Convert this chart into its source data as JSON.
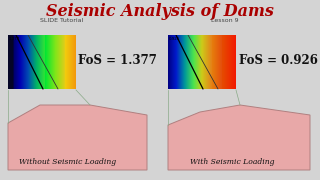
{
  "title": "Seismic Analysis of Dams",
  "subtitle_left": "SLIDE Tutorial",
  "subtitle_right": "Lesson 9",
  "label_left": "Without Seismic Loading",
  "label_right": "With Seismic Loading",
  "fos_left": "FoS = 1.377",
  "fos_right": "FoS = 0.926",
  "bg_color": "#d4d4d4",
  "title_color": "#aa0000",
  "subtitle_color": "#444444",
  "label_color": "#111111",
  "fos_color": "#111111",
  "dam_fill_color": "#e8a8a8",
  "dam_edge_color": "#b08080",
  "connector_color": "#8aaa88"
}
